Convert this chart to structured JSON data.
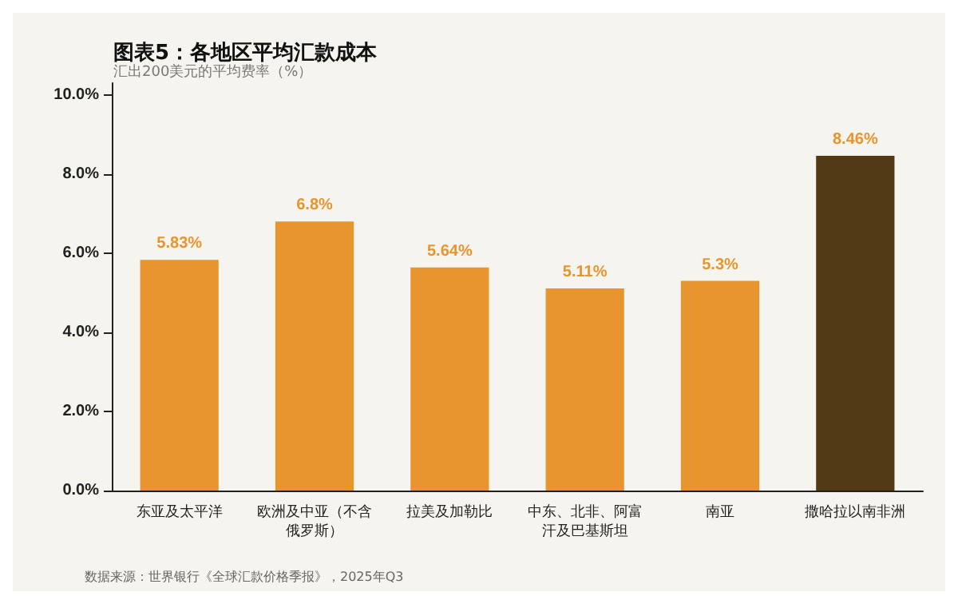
{
  "chart_data": {
    "type": "bar",
    "title": "图表5：各地区平均汇款成本",
    "subtitle": "汇出200美元的平均费率（%）",
    "annotations": [
      "数据来源：世界银行《全球汇款价格季报》，2025年Q3"
    ],
    "categories": [
      "东亚及太平洋",
      "欧洲及中亚（不含俄罗斯）",
      "拉美及加勒比",
      "中东、北非、阿富汗及巴基斯坦",
      "南亚",
      "撒哈拉以南非洲"
    ],
    "values": [
      5.83,
      6.8,
      5.64,
      5.11,
      5.3,
      8.46
    ],
    "colors": [
      "#e8952f",
      "#e8952f",
      "#e8952f",
      "#e8952f",
      "#e8952f",
      "#513a14"
    ],
    "value_labels": [
      "5.83%",
      "6.8%",
      "5.64%",
      "5.11%",
      "5.3%",
      "8.46%"
    ],
    "ylim": [
      0,
      10.3
    ],
    "yticks": [
      {
        "value": 0,
        "label": "0.0%"
      },
      {
        "value": 2,
        "label": "2.0%"
      },
      {
        "value": 4,
        "label": "4.0%"
      },
      {
        "value": 6,
        "label": "6.0%"
      },
      {
        "value": 8,
        "label": "8.0%"
      },
      {
        "value": 10,
        "label": "10.0%"
      }
    ],
    "grid": false
  }
}
